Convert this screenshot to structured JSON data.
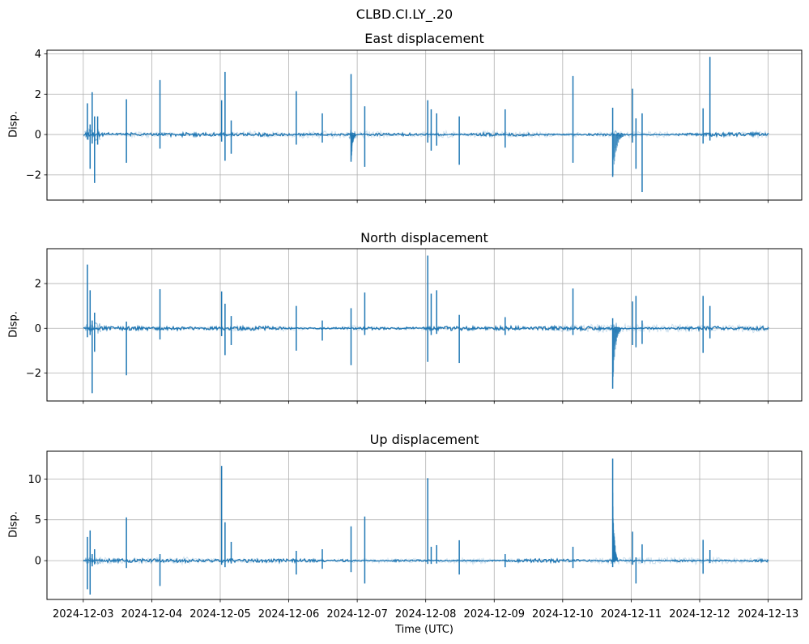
{
  "figure": {
    "suptitle": "CLBD.CI.LY_.20",
    "xlabel": "Time (UTC)",
    "line_color": "#1f77b4",
    "grid_color": "#b0b0b0",
    "spine_color": "#000000",
    "text_color": "#000000",
    "background": "#ffffff"
  },
  "x_axis": {
    "unit": "days since 2024-12-03 00:00 UTC",
    "xlim": [
      -0.53,
      10.49
    ],
    "tick_values": [
      0,
      1,
      2,
      3,
      4,
      5,
      6,
      7,
      8,
      9,
      10
    ],
    "tick_labels": [
      "2024-12-03",
      "2024-12-04",
      "2024-12-05",
      "2024-12-06",
      "2024-12-07",
      "2024-12-08",
      "2024-12-09",
      "2024-12-10",
      "2024-12-11",
      "2024-12-12",
      "2024-12-13"
    ]
  },
  "chart_data": [
    {
      "id": "east",
      "type": "line",
      "title": "East displacement",
      "ylabel": "Disp.",
      "ylim": [
        -3.25,
        4.18
      ],
      "ytick_values": [
        -2,
        0,
        2,
        4
      ],
      "ytick_labels": [
        "−2",
        "0",
        "2",
        "4"
      ],
      "baseline": 0,
      "noise_amp": 0.05,
      "spikes": [
        [
          0.06,
          1.55,
          -0.25
        ],
        [
          0.1,
          0.5,
          -1.7
        ],
        [
          0.13,
          2.1,
          -0.45
        ],
        [
          0.165,
          0.9,
          -2.4
        ],
        [
          0.21,
          0.9,
          -0.5
        ],
        [
          0.63,
          1.75,
          -1.4
        ],
        [
          1.12,
          2.7,
          -0.7
        ],
        [
          2.02,
          1.7,
          -0.35
        ],
        [
          2.07,
          3.1,
          -1.3
        ],
        [
          2.16,
          0.7,
          -0.95
        ],
        [
          3.11,
          2.15,
          -0.5
        ],
        [
          3.49,
          1.05,
          -0.4
        ],
        [
          3.91,
          3.0,
          -1.35
        ],
        [
          4.11,
          1.4,
          -1.6
        ],
        [
          5.03,
          1.7,
          -0.4
        ],
        [
          5.08,
          1.25,
          -0.8
        ],
        [
          5.16,
          1.05,
          -0.55
        ],
        [
          5.49,
          0.9,
          -1.5
        ],
        [
          6.16,
          1.25,
          -0.65
        ],
        [
          7.15,
          2.9,
          -1.4
        ],
        [
          7.73,
          1.33,
          -2.1
        ],
        [
          8.02,
          2.27,
          -0.4
        ],
        [
          8.07,
          0.8,
          -1.7
        ],
        [
          8.16,
          1.05,
          -2.85
        ],
        [
          9.05,
          1.3,
          -0.45
        ],
        [
          9.15,
          3.85,
          -0.3
        ]
      ],
      "decays": [
        [
          3.91,
          -1.3,
          0.07
        ],
        [
          7.73,
          -1.9,
          0.16
        ]
      ],
      "dense_regions": [
        [
          0.03,
          0.25,
          0.3
        ],
        [
          3.88,
          3.98,
          0.25
        ],
        [
          7.7,
          7.85,
          0.2
        ]
      ]
    },
    {
      "id": "north",
      "type": "line",
      "title": "North displacement",
      "ylabel": "Disp.",
      "ylim": [
        -3.25,
        3.56
      ],
      "ytick_values": [
        -2,
        0,
        2
      ],
      "ytick_labels": [
        "−2",
        "0",
        "2"
      ],
      "baseline": 0,
      "noise_amp": 0.05,
      "spikes": [
        [
          0.06,
          2.85,
          -0.4
        ],
        [
          0.1,
          1.7,
          -0.3
        ],
        [
          0.13,
          0.35,
          -2.9
        ],
        [
          0.165,
          0.7,
          -1.05
        ],
        [
          0.63,
          0.3,
          -2.1
        ],
        [
          1.12,
          1.75,
          -0.5
        ],
        [
          2.02,
          1.65,
          -0.35
        ],
        [
          2.07,
          1.1,
          -1.2
        ],
        [
          2.16,
          0.55,
          -0.75
        ],
        [
          3.11,
          1.0,
          -1.0
        ],
        [
          3.49,
          0.35,
          -0.55
        ],
        [
          3.91,
          0.9,
          -1.65
        ],
        [
          4.11,
          1.6,
          -0.3
        ],
        [
          5.03,
          3.25,
          -1.5
        ],
        [
          5.08,
          1.55,
          -0.3
        ],
        [
          5.16,
          1.7,
          -0.25
        ],
        [
          5.49,
          0.6,
          -1.55
        ],
        [
          6.16,
          0.5,
          -0.3
        ],
        [
          7.15,
          1.78,
          -0.3
        ],
        [
          7.73,
          0.45,
          -2.7
        ],
        [
          8.02,
          1.2,
          -0.75
        ],
        [
          8.07,
          1.45,
          -0.85
        ],
        [
          8.16,
          0.35,
          -0.7
        ],
        [
          9.05,
          1.45,
          -1.1
        ],
        [
          9.15,
          1.0,
          -0.45
        ]
      ],
      "decays": [
        [
          7.73,
          -2.4,
          0.12
        ]
      ],
      "dense_regions": [
        [
          0.03,
          0.25,
          0.25
        ],
        [
          7.7,
          7.8,
          0.25
        ]
      ]
    },
    {
      "id": "up",
      "type": "line",
      "title": "Up displacement",
      "ylabel": "Disp.",
      "ylim": [
        -4.75,
        13.4
      ],
      "ytick_values": [
        0,
        5,
        10
      ],
      "ytick_labels": [
        "0",
        "5",
        "10"
      ],
      "baseline": 0,
      "noise_amp": 0.12,
      "spikes": [
        [
          0.06,
          2.9,
          -3.5
        ],
        [
          0.1,
          3.7,
          -4.15
        ],
        [
          0.13,
          0.8,
          -0.7
        ],
        [
          0.165,
          1.4,
          -0.45
        ],
        [
          0.63,
          5.3,
          -0.9
        ],
        [
          1.12,
          0.8,
          -3.1
        ],
        [
          2.02,
          11.6,
          -0.5
        ],
        [
          2.07,
          4.7,
          -0.8
        ],
        [
          2.16,
          2.3,
          -0.35
        ],
        [
          3.11,
          1.2,
          -1.7
        ],
        [
          3.49,
          1.4,
          -1.0
        ],
        [
          3.91,
          4.2,
          -1.4
        ],
        [
          4.11,
          5.4,
          -2.8
        ],
        [
          5.03,
          10.1,
          -0.4
        ],
        [
          5.08,
          1.7,
          -0.4
        ],
        [
          5.16,
          1.9,
          -0.35
        ],
        [
          5.49,
          2.5,
          -1.7
        ],
        [
          6.16,
          0.8,
          -0.8
        ],
        [
          7.15,
          1.7,
          -0.9
        ],
        [
          7.73,
          12.5,
          -0.8
        ],
        [
          8.02,
          3.55,
          -0.5
        ],
        [
          8.07,
          0.4,
          -2.8
        ],
        [
          8.16,
          2.0,
          -0.3
        ],
        [
          9.05,
          2.55,
          -1.6
        ],
        [
          9.15,
          1.3,
          -0.3
        ]
      ],
      "decays": [
        [
          7.73,
          8.0,
          0.07
        ]
      ],
      "dense_regions": [
        [
          0.03,
          0.25,
          0.45
        ],
        [
          7.7,
          7.78,
          0.35
        ]
      ]
    }
  ]
}
